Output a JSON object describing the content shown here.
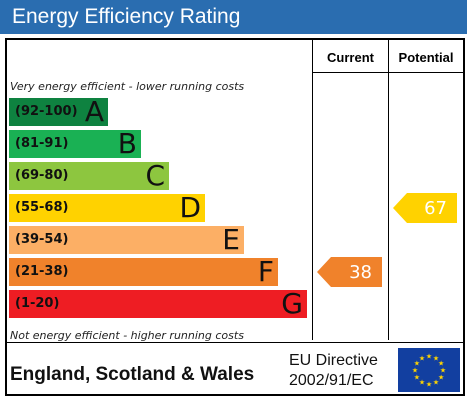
{
  "header": {
    "title": "Energy Efficiency Rating"
  },
  "columns": {
    "current": "Current",
    "potential": "Potential"
  },
  "notes": {
    "top": "Very energy efficient - lower running costs",
    "bottom": "Not energy efficient - higher running costs"
  },
  "footer": {
    "region": "England, Scotland & Wales",
    "directive_line1": "EU Directive",
    "directive_line2": "2002/91/EC"
  },
  "colors": {
    "header_bg": "#2a6db0",
    "A": "#0e8240",
    "B": "#1ab154",
    "C": "#8dc63f",
    "D": "#ffd200",
    "E": "#fcaf65",
    "F": "#f0822b",
    "G": "#ee1d23",
    "eu_flag": "#123fa0",
    "eu_stars": "#ffd500"
  },
  "chart_data": {
    "type": "bar",
    "bands": [
      {
        "letter": "A",
        "range": "(92-100)"
      },
      {
        "letter": "B",
        "range": "(81-91)"
      },
      {
        "letter": "C",
        "range": "(69-80)"
      },
      {
        "letter": "D",
        "range": "(55-68)"
      },
      {
        "letter": "E",
        "range": "(39-54)"
      },
      {
        "letter": "F",
        "range": "(21-38)"
      },
      {
        "letter": "G",
        "range": "(1-20)"
      }
    ],
    "current": {
      "value": 38,
      "band": "F"
    },
    "potential": {
      "value": 67,
      "band": "D"
    }
  }
}
